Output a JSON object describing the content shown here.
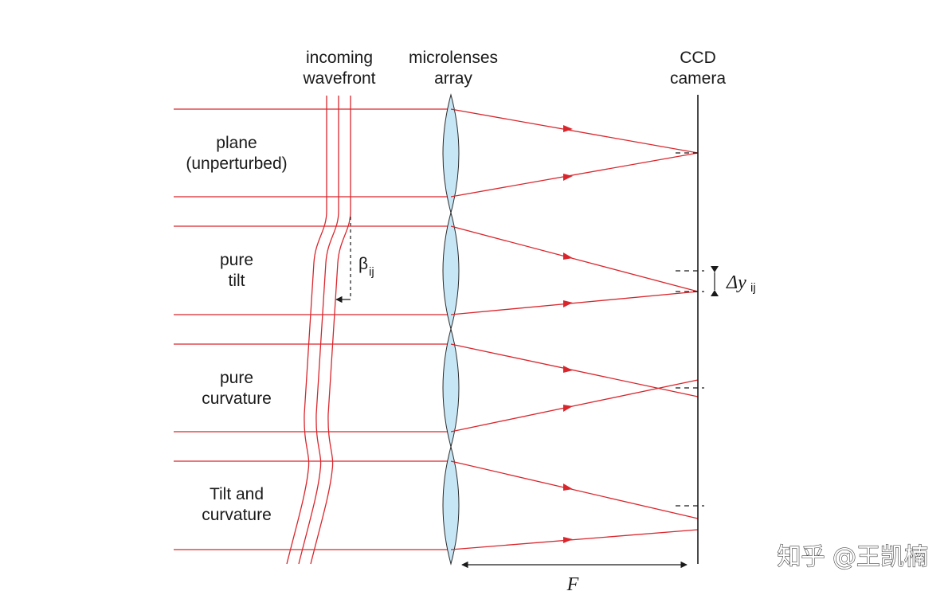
{
  "labels": {
    "incoming_l1": "incoming",
    "incoming_l2": "wavefront",
    "micro_l1": "microlenses",
    "micro_l2": "array",
    "ccd_l1": "CCD",
    "ccd_l2": "camera"
  },
  "rows": [
    {
      "line1": "plane",
      "line2": "(unperturbed)"
    },
    {
      "line1": "pure",
      "line2": "tilt"
    },
    {
      "line1": "pure",
      "line2": "curvature"
    },
    {
      "line1": "Tilt and",
      "line2": "curvature"
    }
  ],
  "beta": {
    "symbol": "β",
    "sub": "ij"
  },
  "delta": {
    "symbol": "Δy",
    "sub": "ij"
  },
  "focal": "F",
  "watermark": "知乎 @王凯楠",
  "colors": {
    "ray": "#d9262c",
    "lens": "#c7e6f5",
    "ink": "#1a1a1a"
  }
}
